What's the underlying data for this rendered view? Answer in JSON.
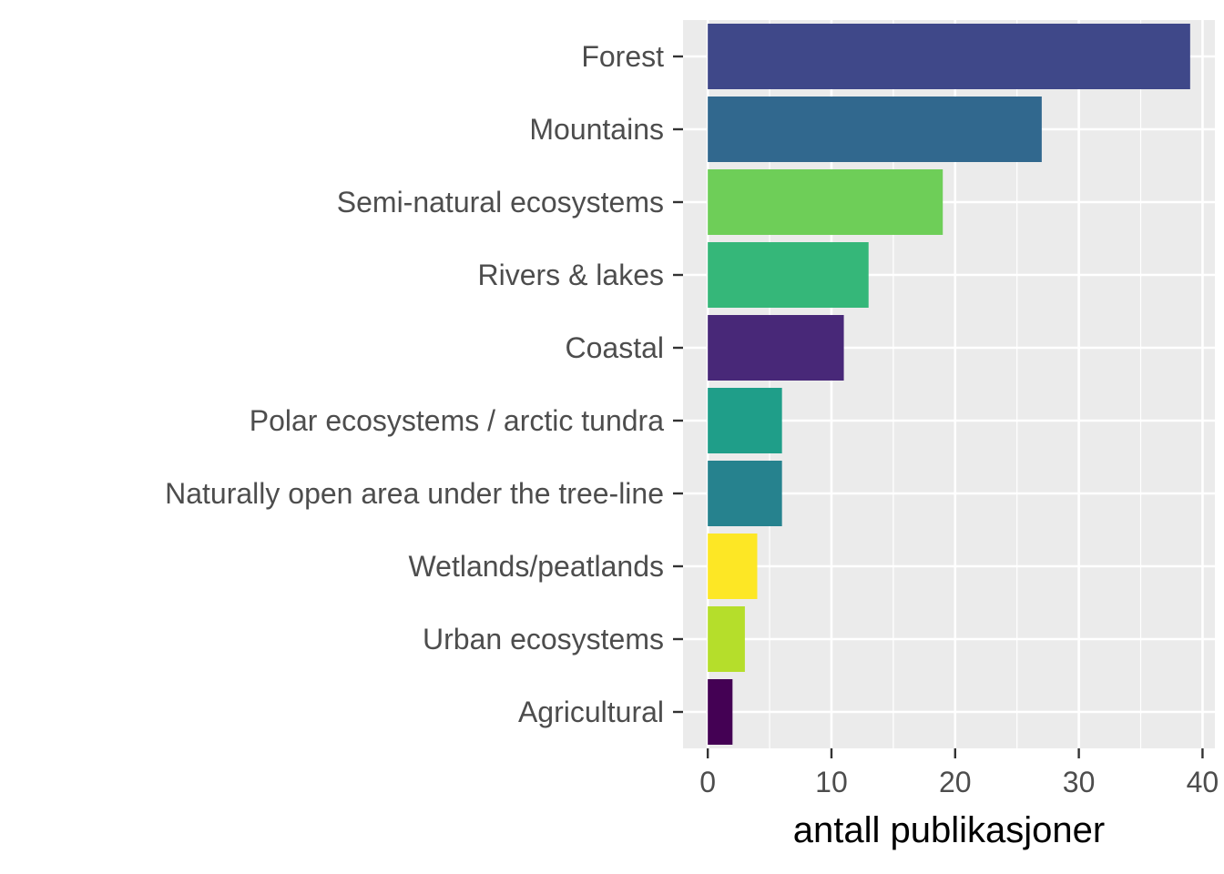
{
  "chart_data": {
    "type": "bar",
    "orientation": "horizontal",
    "categories": [
      "Forest",
      "Mountains",
      "Semi-natural ecosystems",
      "Rivers & lakes",
      "Coastal",
      "Polar ecosystems / arctic tundra",
      "Naturally open area under the tree-line",
      "Wetlands/peatlands",
      "Urban ecosystems",
      "Agricultural"
    ],
    "values": [
      39,
      27,
      19,
      13,
      11,
      6,
      6,
      4,
      3,
      2
    ],
    "colors": [
      "#3f4889",
      "#31688e",
      "#6ece58",
      "#35b779",
      "#482878",
      "#1f9e89",
      "#26828e",
      "#fde725",
      "#b5de2b",
      "#440154"
    ],
    "title": "",
    "xlabel": "antall publikasjoner",
    "ylabel": "",
    "xlim": [
      -2,
      41
    ],
    "xticks": [
      0,
      10,
      20,
      30,
      40
    ],
    "grid": true,
    "legend": "none",
    "panel_background": "#ebebeb",
    "grid_color": "#ffffff",
    "axis_text_color": "#4d4d4d",
    "tick_color": "#333333"
  }
}
